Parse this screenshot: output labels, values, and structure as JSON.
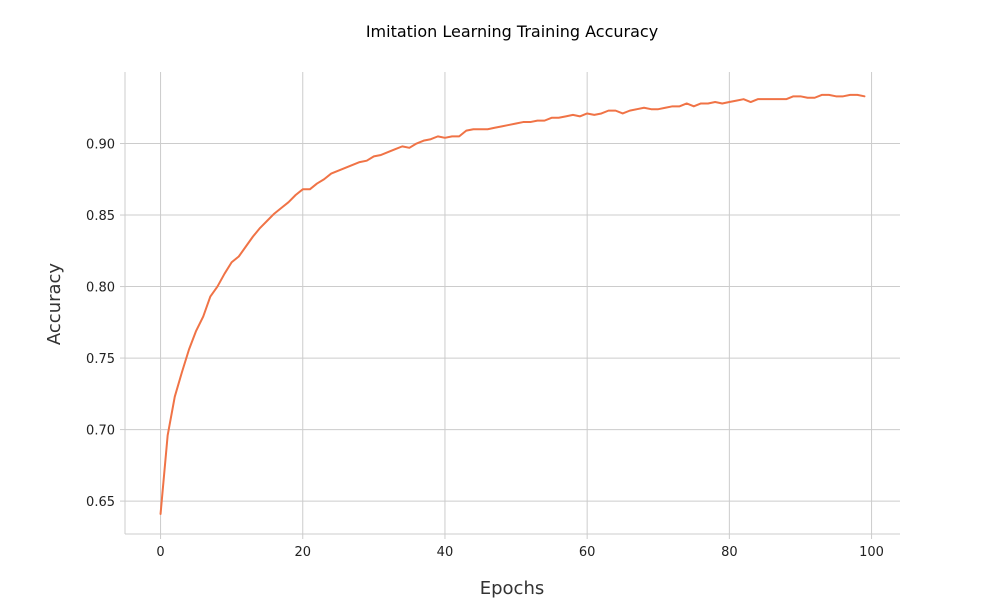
{
  "chart_data": {
    "type": "line",
    "title": "Imitation Learning Training Accuracy",
    "xlabel": "Epochs",
    "ylabel": "Accuracy",
    "xlim": [
      -5,
      104
    ],
    "ylim": [
      0.627,
      0.95
    ],
    "xticks": [
      0,
      20,
      40,
      60,
      80,
      100
    ],
    "yticks": [
      0.65,
      0.7,
      0.75,
      0.8,
      0.85,
      0.9
    ],
    "ytick_labels": [
      "0.65",
      "0.70",
      "0.75",
      "0.80",
      "0.85",
      "0.90"
    ],
    "grid": true,
    "series": [
      {
        "color": "#f07346",
        "x": [
          0,
          1,
          2,
          3,
          4,
          5,
          6,
          7,
          8,
          9,
          10,
          11,
          12,
          13,
          14,
          15,
          16,
          17,
          18,
          19,
          20,
          21,
          22,
          23,
          24,
          25,
          26,
          27,
          28,
          29,
          30,
          31,
          32,
          33,
          34,
          35,
          36,
          37,
          38,
          39,
          40,
          41,
          42,
          43,
          44,
          45,
          46,
          47,
          48,
          49,
          50,
          51,
          52,
          53,
          54,
          55,
          56,
          57,
          58,
          59,
          60,
          61,
          62,
          63,
          64,
          65,
          66,
          67,
          68,
          69,
          70,
          71,
          72,
          73,
          74,
          75,
          76,
          77,
          78,
          79,
          80,
          81,
          82,
          83,
          84,
          85,
          86,
          87,
          88,
          89,
          90,
          91,
          92,
          93,
          94,
          95,
          96,
          97,
          98,
          99
        ],
        "values": [
          0.641,
          0.696,
          0.723,
          0.74,
          0.756,
          0.769,
          0.779,
          0.793,
          0.8,
          0.809,
          0.817,
          0.821,
          0.828,
          0.835,
          0.841,
          0.846,
          0.851,
          0.855,
          0.859,
          0.864,
          0.868,
          0.868,
          0.872,
          0.875,
          0.879,
          0.881,
          0.883,
          0.885,
          0.887,
          0.888,
          0.891,
          0.892,
          0.894,
          0.896,
          0.898,
          0.897,
          0.9,
          0.902,
          0.903,
          0.905,
          0.904,
          0.905,
          0.905,
          0.909,
          0.91,
          0.91,
          0.91,
          0.911,
          0.912,
          0.913,
          0.914,
          0.915,
          0.915,
          0.916,
          0.916,
          0.918,
          0.918,
          0.919,
          0.92,
          0.919,
          0.921,
          0.92,
          0.921,
          0.923,
          0.923,
          0.921,
          0.923,
          0.924,
          0.925,
          0.924,
          0.924,
          0.925,
          0.926,
          0.926,
          0.928,
          0.926,
          0.928,
          0.928,
          0.929,
          0.928,
          0.929,
          0.93,
          0.931,
          0.929,
          0.931,
          0.931,
          0.931,
          0.931,
          0.931,
          0.933,
          0.933,
          0.932,
          0.932,
          0.934,
          0.934,
          0.933,
          0.933,
          0.934,
          0.934,
          0.933
        ]
      }
    ]
  }
}
